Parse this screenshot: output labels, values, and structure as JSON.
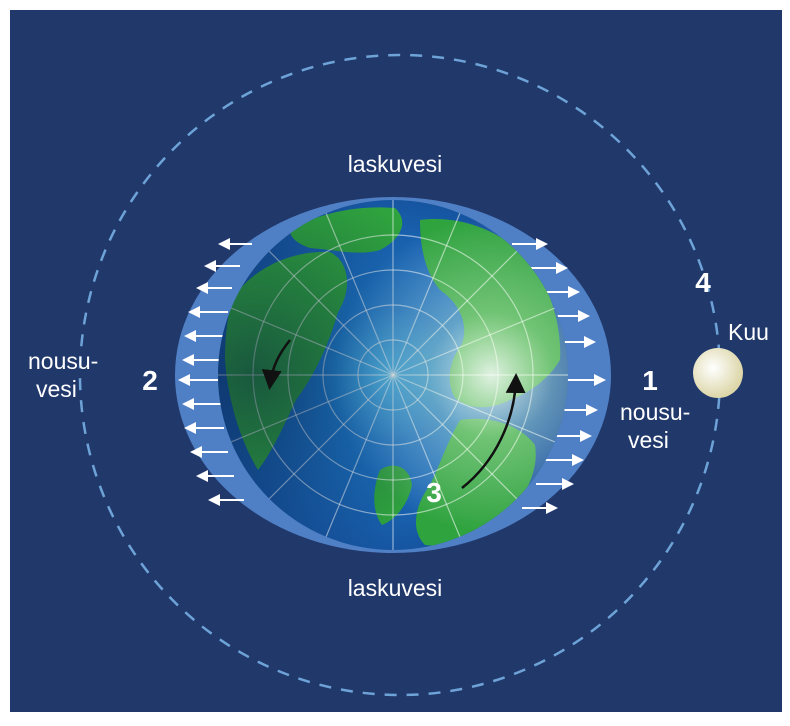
{
  "labels": {
    "top_low_tide": "laskuvesi",
    "bottom_low_tide": "laskuvesi",
    "left_number": "2",
    "left_high_tide_line1": "nousu-",
    "left_high_tide_line2": "vesi",
    "right_number": "1",
    "right_high_tide_line1": "nousu-",
    "right_high_tide_line2": "vesi",
    "rotation_number": "3",
    "orbit_number": "4",
    "moon": "Kuu"
  },
  "colors": {
    "background": "#21386b",
    "tidal_bulge": "#4f7fc4",
    "ocean": "#1a63b8",
    "land": "#2fa33e",
    "orbit": "#6ea3d8",
    "moon": "#f1edc9"
  }
}
